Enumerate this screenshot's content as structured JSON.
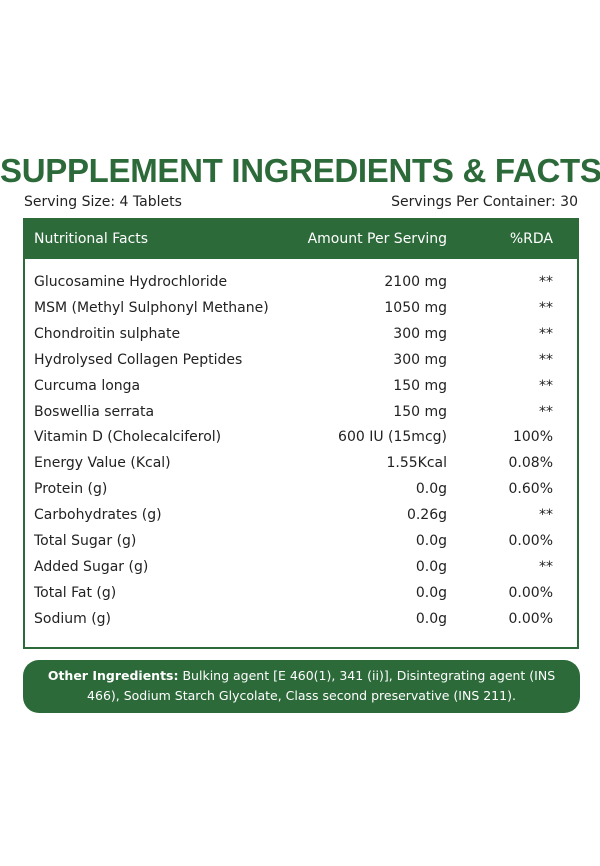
{
  "header": {
    "title": "SUPPLEMENT INGREDIENTS & FACTS",
    "serving_size": "Serving Size: 4 Tablets",
    "servings_per_container": "Servings Per Container: 30"
  },
  "table": {
    "columns": [
      "Nutritional Facts",
      "Amount Per Serving",
      "%RDA"
    ],
    "rows": [
      [
        "Glucosamine Hydrochloride",
        "2100 mg",
        "**"
      ],
      [
        "MSM (Methyl Sulphonyl Methane)",
        "1050 mg",
        "**"
      ],
      [
        "Chondroitin sulphate",
        "300 mg",
        "**"
      ],
      [
        "Hydrolysed Collagen Peptides",
        "300 mg",
        "**"
      ],
      [
        "Curcuma longa",
        "150 mg",
        "**"
      ],
      [
        "Boswellia serrata",
        "150 mg",
        "**"
      ],
      [
        "Vitamin D (Cholecalciferol)",
        "600 IU (15mcg)",
        "100%"
      ],
      [
        "Energy Value (Kcal)",
        "1.55Kcal",
        "0.08%"
      ],
      [
        "Protein (g)",
        "0.0g",
        "0.60%"
      ],
      [
        "Carbohydrates (g)",
        "0.26g",
        "**"
      ],
      [
        "Total Sugar (g)",
        "0.0g",
        "0.00%"
      ],
      [
        "Added Sugar (g)",
        "0.0g",
        "**"
      ],
      [
        "Total Fat (g)",
        "0.0g",
        "0.00%"
      ],
      [
        "Sodium (g)",
        "0.0g",
        "0.00%"
      ]
    ]
  },
  "other_ingredients": {
    "label": "Other Ingredients:",
    "text": "Bulking agent [E 460(1), 341 (ii)], Disintegrating agent (INS 466), Sodium Starch Glycolate, Class second preservative (INS 211)."
  }
}
